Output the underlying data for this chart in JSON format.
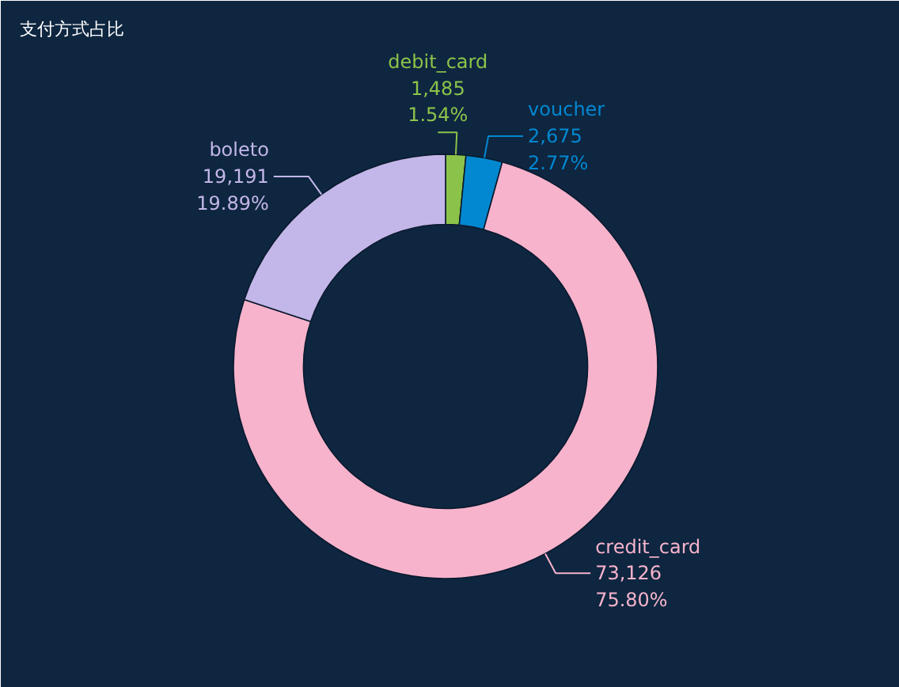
{
  "chart_data": {
    "type": "donut",
    "title": "支付方式占比",
    "categories": [
      "debit_card",
      "voucher",
      "credit_card",
      "boleto"
    ],
    "values": [
      1485,
      2675,
      73126,
      19191
    ],
    "colors": [
      "#8bc34a",
      "#0288d1",
      "#f7b3cc",
      "#c3b6e8"
    ],
    "value_labels": [
      "1,485\n1.54%",
      "2,675\n2.77%",
      "73,126\n75.80%",
      "19,191\n19.89%"
    ]
  }
}
